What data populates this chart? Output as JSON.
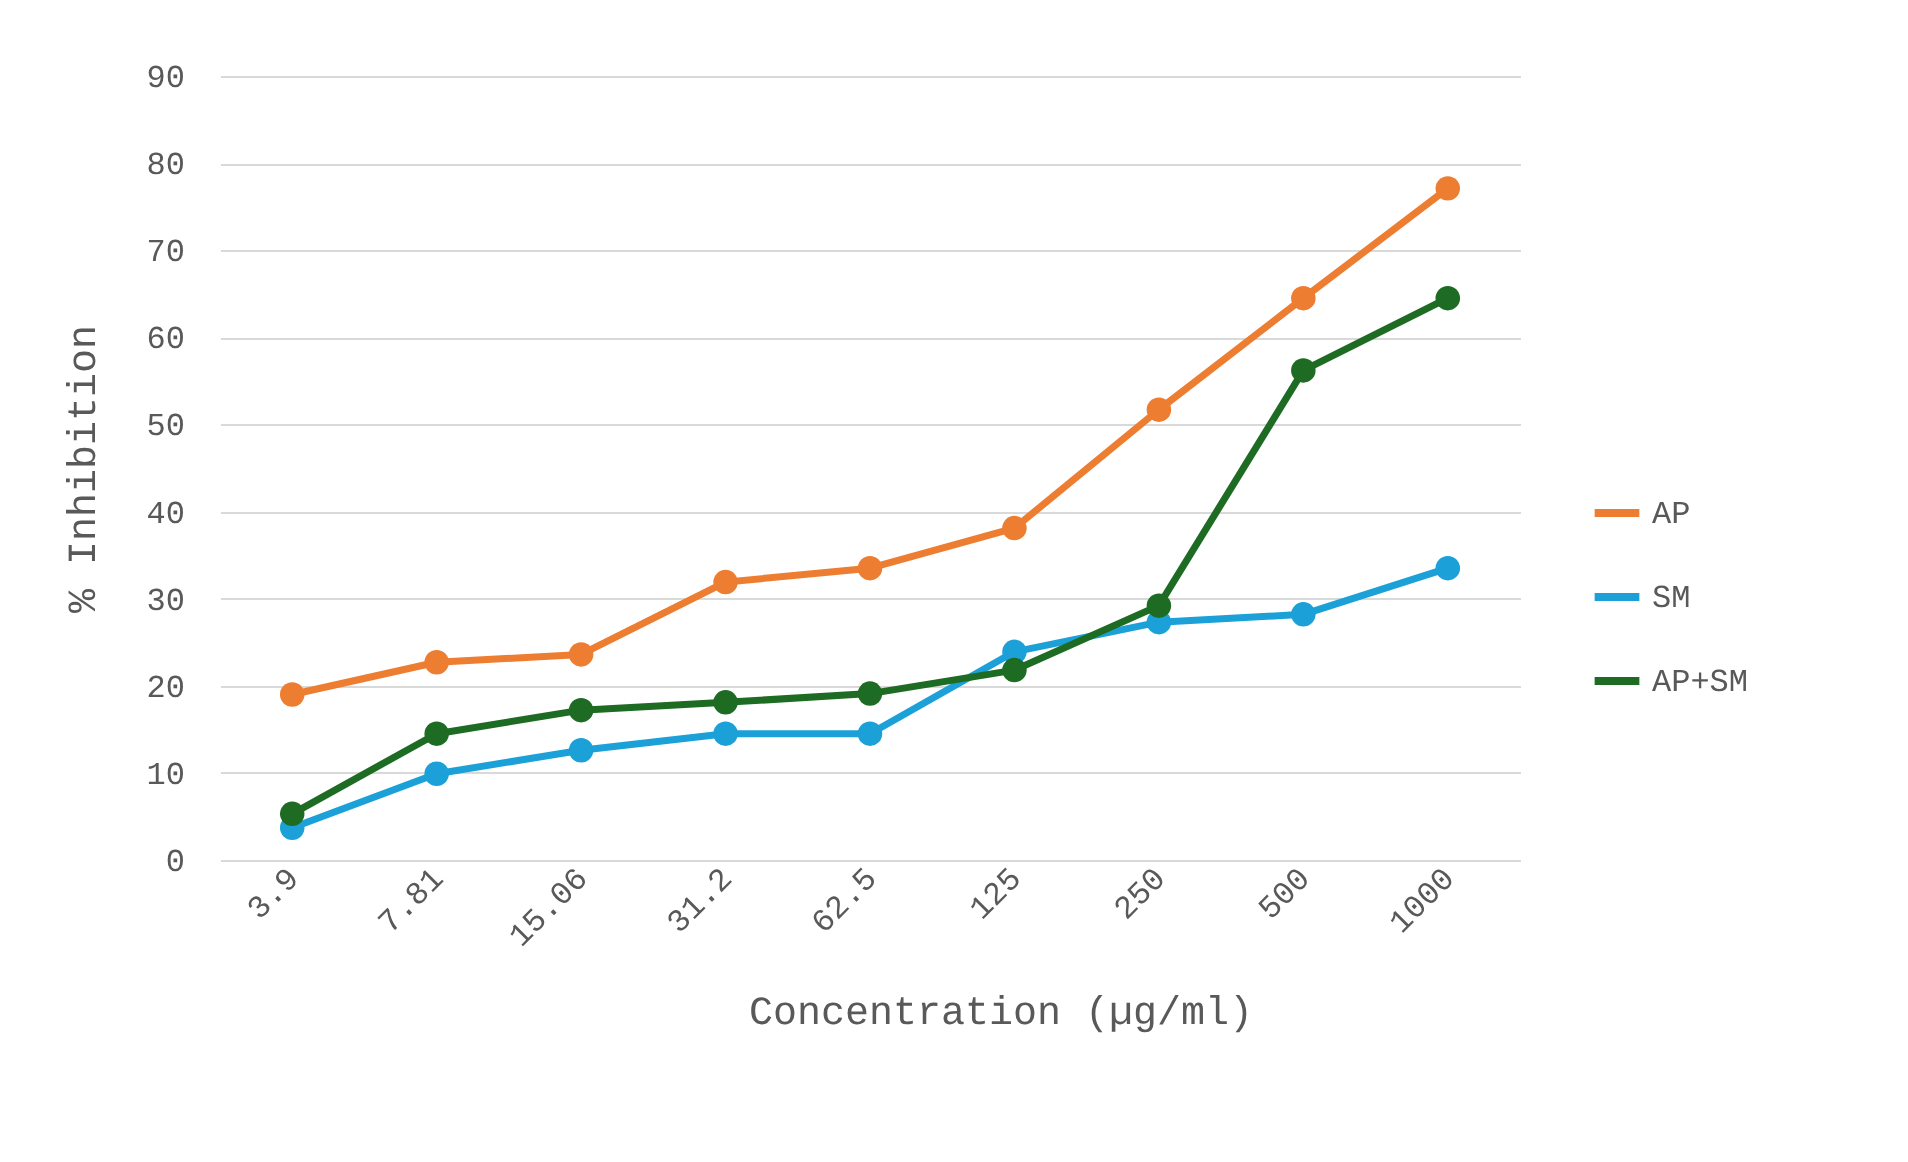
{
  "chart_data": {
    "type": "line",
    "xlabel": "Concentration (µg/ml)",
    "ylabel": "% Inhibition",
    "categories": [
      "3.9",
      "7.81",
      "15.06",
      "31.2",
      "62.5",
      "125",
      "250",
      "500",
      "1000"
    ],
    "series": [
      {
        "name": "AP",
        "color": "#ed7d31",
        "values": [
          19,
          22.7,
          23.6,
          31.9,
          33.5,
          38.1,
          51.7,
          64.5,
          77.1
        ]
      },
      {
        "name": "SM",
        "color": "#1ba1d8",
        "values": [
          3.7,
          9.9,
          12.6,
          14.5,
          14.5,
          23.9,
          27.3,
          28.2,
          33.5
        ]
      },
      {
        "name": "AP+SM",
        "color": "#1e6b24",
        "values": [
          5.3,
          14.5,
          17.2,
          18.1,
          19.1,
          21.8,
          29.2,
          56.2,
          64.5
        ]
      }
    ],
    "ylim": [
      0,
      90
    ],
    "yticks": [
      0,
      10,
      20,
      30,
      40,
      50,
      60,
      70,
      80,
      90
    ],
    "grid": "y",
    "legend": "right",
    "marker": "circle",
    "line_style": "solid"
  }
}
